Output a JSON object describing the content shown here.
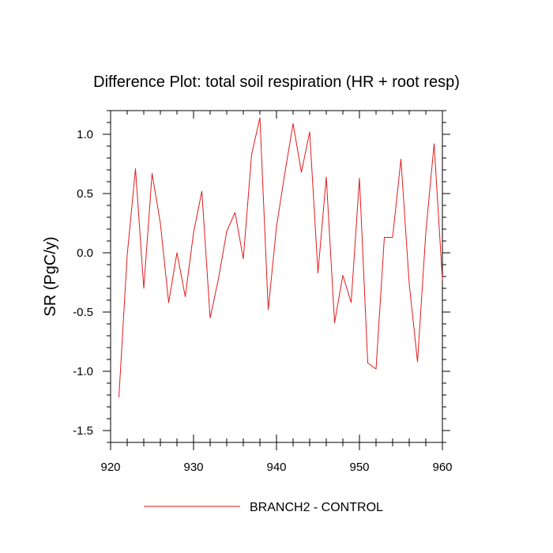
{
  "chart_data": {
    "type": "line",
    "title": "Difference Plot: total soil respiration (HR + root resp)",
    "xlabel": "",
    "ylabel": "SR  (PgC/y)",
    "xlim": [
      920,
      960
    ],
    "ylim": [
      -1.6,
      1.2
    ],
    "xticks": [
      920,
      930,
      940,
      950,
      960
    ],
    "yticks": [
      -1.5,
      -1.0,
      -0.5,
      0.0,
      0.5,
      1.0
    ],
    "ytick_labels": [
      "-1.5",
      "-1.0",
      "-0.5",
      "0.0",
      "0.5",
      "1.0"
    ],
    "grid": false,
    "legend": "bottom",
    "series": [
      {
        "name": "BRANCH2 - CONTROL",
        "color": "#e31a1c",
        "x": [
          921,
          922,
          923,
          924,
          925,
          926,
          927,
          928,
          929,
          930,
          931,
          932,
          933,
          934,
          935,
          936,
          937,
          938,
          939,
          940,
          941,
          942,
          943,
          944,
          945,
          946,
          947,
          948,
          949,
          950,
          951,
          952,
          953,
          954,
          955,
          956,
          957,
          958,
          959,
          960
        ],
        "y": [
          -1.22,
          -0.02,
          0.71,
          -0.3,
          0.67,
          0.25,
          -0.42,
          0.0,
          -0.37,
          0.17,
          0.52,
          -0.55,
          -0.22,
          0.18,
          0.34,
          -0.05,
          0.83,
          1.14,
          -0.48,
          0.22,
          0.67,
          1.09,
          0.68,
          1.02,
          -0.17,
          0.64,
          -0.59,
          -0.19,
          -0.42,
          0.63,
          -0.93,
          -0.98,
          0.13,
          0.13,
          0.79,
          -0.26,
          -0.92,
          0.17,
          0.92,
          -0.23
        ]
      }
    ]
  }
}
